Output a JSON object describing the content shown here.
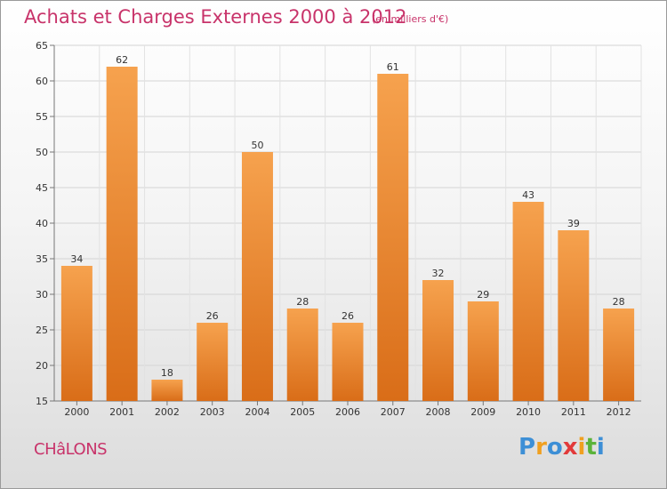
{
  "title": "Achats et Charges Externes 2000 à 2012",
  "subtitle": "(en milliers d'€)",
  "city": "CHâLONS",
  "logo": {
    "letters": [
      "P",
      "r",
      "o",
      "x",
      "i",
      "t",
      "i"
    ],
    "colors": [
      "#3d8fd6",
      "#f0a020",
      "#3d8fd6",
      "#e23a3a",
      "#f0a020",
      "#5bb33a",
      "#3d8fd6"
    ]
  },
  "colors": {
    "bar_top": "#f6a24e",
    "bar_bottom": "#d96d18",
    "text_accent": "#c8336a"
  },
  "chart_data": {
    "type": "bar",
    "categories": [
      "2000",
      "2001",
      "2002",
      "2003",
      "2004",
      "2005",
      "2006",
      "2007",
      "2008",
      "2009",
      "2010",
      "2011",
      "2012"
    ],
    "values": [
      34,
      62,
      18,
      26,
      50,
      28,
      26,
      61,
      32,
      29,
      43,
      39,
      28
    ],
    "ylim": [
      15,
      65
    ],
    "yticks": [
      15,
      20,
      25,
      30,
      35,
      40,
      45,
      50,
      55,
      60,
      65
    ],
    "grid": true,
    "xlabel": "",
    "ylabel": ""
  }
}
